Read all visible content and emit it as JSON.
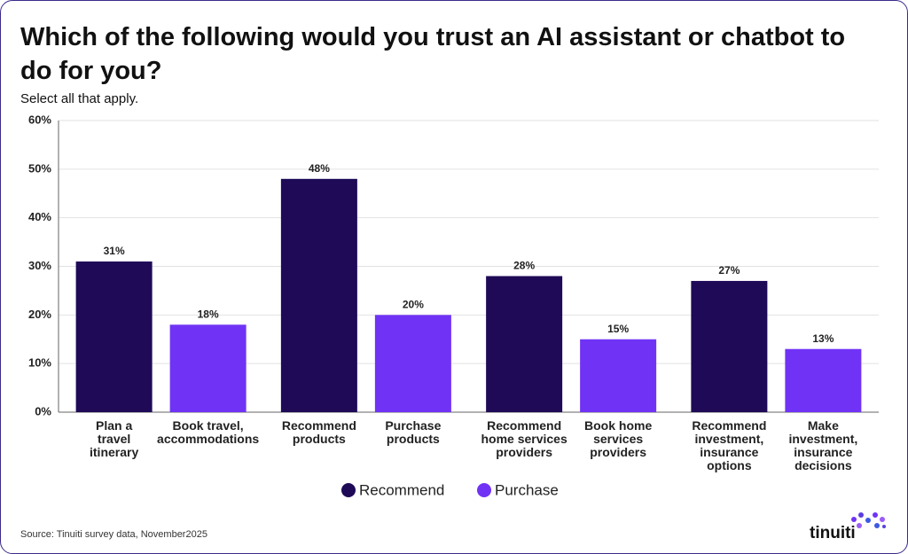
{
  "chart_data": {
    "type": "bar",
    "title": "Which of the following would you trust an AI assistant or chatbot to do for you?",
    "subtitle": "Select all that apply.",
    "categories": [
      "Plan a\ntravel\nitinerary",
      "Book travel,\naccommodations",
      "Recommend\nproducts",
      "Purchase\nproducts",
      "Recommend\nhome services\nproviders",
      "Book home\nservices\nproviders",
      "Recommend\ninvestment,\ninsurance\noptions",
      "Make\ninvestment,\ninsurance\ndecisions"
    ],
    "series": [
      {
        "name": "Recommend",
        "color": "#1e0a57",
        "values": [
          31,
          null,
          48,
          null,
          28,
          null,
          27,
          null
        ],
        "value_labels": [
          "31%",
          null,
          "48%",
          null,
          "28%",
          null,
          "27%",
          null
        ]
      },
      {
        "name": "Purchase",
        "color": "#7033f5",
        "values": [
          null,
          18,
          null,
          20,
          null,
          15,
          null,
          13
        ],
        "value_labels": [
          null,
          "18%",
          null,
          "20%",
          null,
          "15%",
          null,
          "13%"
        ]
      }
    ],
    "ylim": [
      0,
      60
    ],
    "yticks": [
      {
        "value": 0,
        "label": "0%"
      },
      {
        "value": 10,
        "label": "10%"
      },
      {
        "value": 20,
        "label": "20%"
      },
      {
        "value": 30,
        "label": "30%"
      },
      {
        "value": 40,
        "label": "40%"
      },
      {
        "value": 50,
        "label": "50%"
      },
      {
        "value": 60,
        "label": "60%"
      }
    ],
    "grid": true,
    "legend": "bottom",
    "source": "Source: Tinuiti survey data, November2025",
    "logo": "tinuiti"
  }
}
